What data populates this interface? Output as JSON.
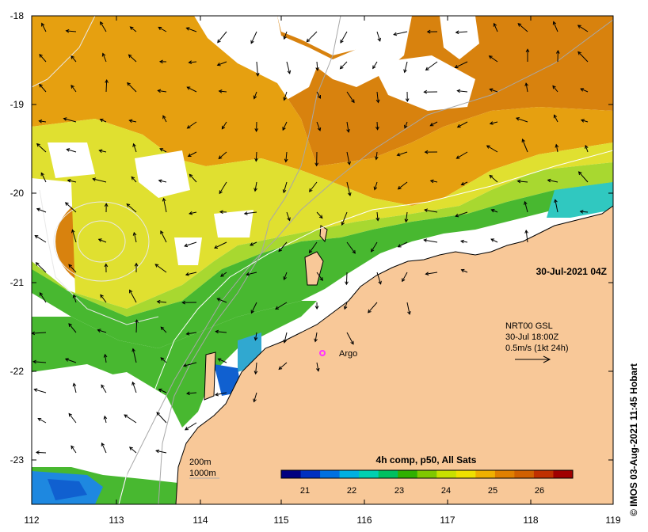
{
  "map": {
    "timestamp": "30-Jul-2021 04Z",
    "credit": "© IMOS 03-Aug-2021 11:45 Hobart",
    "x_ticks": [
      "112",
      "113",
      "114",
      "115",
      "116",
      "117",
      "118",
      "119"
    ],
    "y_ticks": [
      "-18",
      "-19",
      "-20",
      "-21",
      "-22",
      "-23"
    ]
  },
  "current_legend": {
    "line1": "NRT00 GSL",
    "line2": "30-Jul 18:00Z",
    "line3": "0.5m/s (1kt 24h)"
  },
  "argo": {
    "label": "Argo",
    "color": "#ff33ff"
  },
  "isobaths": {
    "label_200": "200m",
    "label_1000": "1000m"
  },
  "colorbar": {
    "title": "4h comp, p50, All Sats",
    "ticks": [
      "21",
      "22",
      "23",
      "24",
      "25",
      "26"
    ],
    "colors": [
      "#000080",
      "#0030c0",
      "#0070e0",
      "#00b0e0",
      "#00d0b0",
      "#00c060",
      "#30b000",
      "#80c800",
      "#c8e000",
      "#f0e000",
      "#f0b000",
      "#e08000",
      "#d06000",
      "#c03000",
      "#a00000"
    ]
  },
  "colors": {
    "land": "#f8c898",
    "warm": "#d8820e",
    "mid": "#e8b010",
    "yellow": "#e0e030",
    "lime": "#a8d830",
    "green": "#48b830",
    "cyan": "#30c8c0",
    "blue": "#1060d0"
  }
}
